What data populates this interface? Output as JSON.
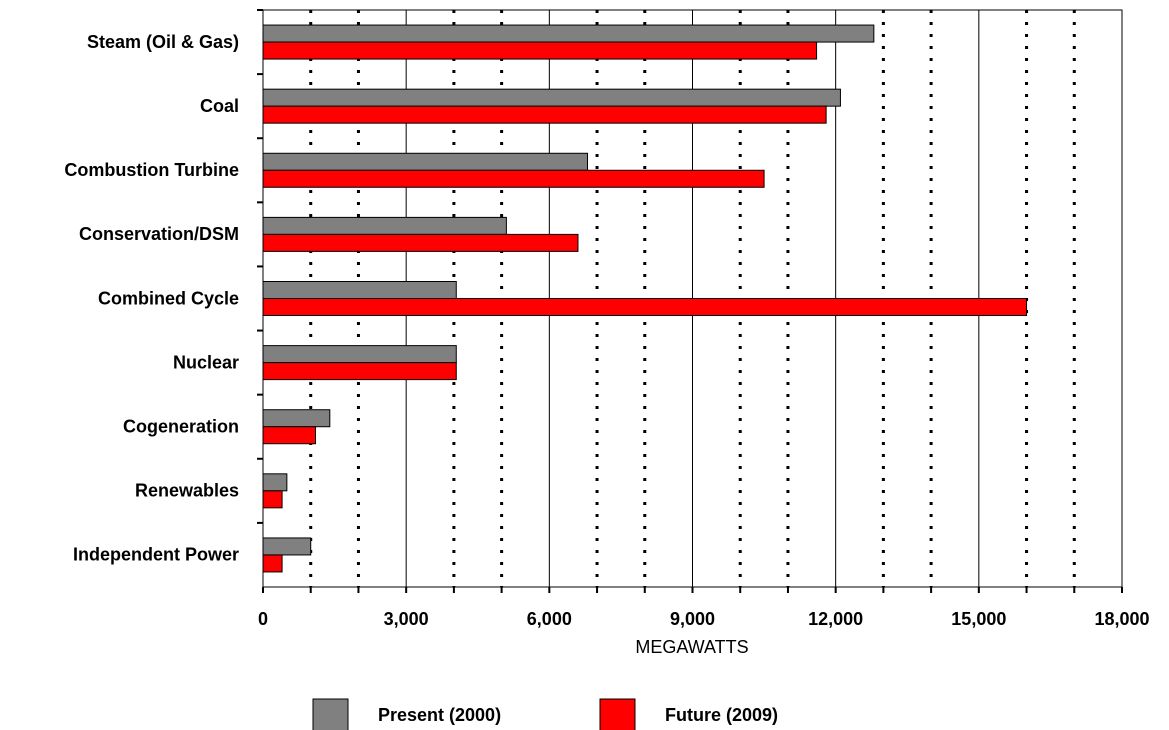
{
  "chart_data": {
    "type": "hbar",
    "x_label": "MEGAWATTS",
    "categories": [
      "Steam (Oil & Gas)",
      "Coal",
      "Combustion Turbine",
      "Conservation/DSM",
      "Combined Cycle",
      "Nuclear",
      "Cogeneration",
      "Renewables",
      "Independent Power"
    ],
    "series": [
      {
        "name": "Present (2000)",
        "color": "#808080",
        "values": [
          12800,
          12100,
          6800,
          5100,
          4050,
          4050,
          1400,
          500,
          1000
        ]
      },
      {
        "name": "Future (2009)",
        "color": "#ff0000",
        "values": [
          11600,
          11800,
          10500,
          6600,
          16000,
          4050,
          1100,
          400,
          400
        ]
      }
    ],
    "xlim": [
      0,
      18000
    ],
    "xticks": [
      0,
      {
        "value": 3000,
        "label": "3,000"
      },
      {
        "value": 6000,
        "label": "6,000"
      },
      {
        "value": 9000,
        "label": "9,000"
      },
      {
        "value": 12000,
        "label": "12,000"
      },
      {
        "value": 15000,
        "label": "15,000"
      },
      {
        "value": 18000,
        "label": "18,000"
      }
    ],
    "minor_xticks": [
      1000,
      2000,
      4000,
      5000,
      7000,
      8000,
      10000,
      11000,
      13000,
      14000,
      16000,
      17000
    ],
    "grid": true,
    "legend": "bottom"
  }
}
